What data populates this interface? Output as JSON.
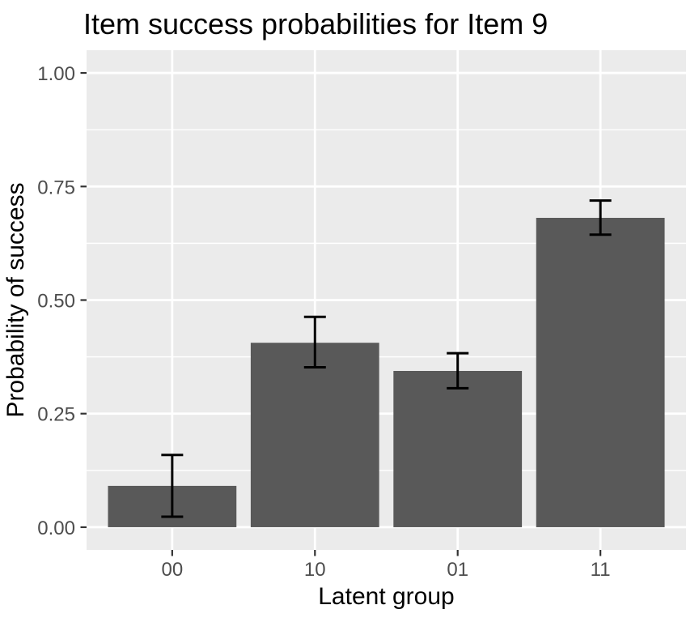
{
  "chart_data": {
    "type": "bar",
    "title": "Item success probabilities for Item 9",
    "xlabel": "Latent group",
    "ylabel": "Probability of success",
    "categories": [
      "00",
      "10",
      "01",
      "11"
    ],
    "values": [
      0.091,
      0.406,
      0.344,
      0.681
    ],
    "error_bars": {
      "low": [
        0.023,
        0.352,
        0.306,
        0.644
      ],
      "high": [
        0.159,
        0.463,
        0.383,
        0.719
      ]
    },
    "ylim": [
      0,
      1
    ],
    "yticks": [
      0,
      0.25,
      0.5,
      0.75,
      1
    ],
    "ytick_labels": [
      "0.00",
      "0.25",
      "0.50",
      "0.75",
      "1.00"
    ],
    "yticks_minor": [
      0.125,
      0.375,
      0.625,
      0.875
    ],
    "grid": true,
    "legend": false,
    "style": "ggplot2-theme-grey"
  },
  "colors": {
    "bar_fill": "#595959",
    "panel_bg": "#EBEBEB",
    "gridline": "#FFFFFF",
    "error_bar": "#000000",
    "tick_mark": "#333333",
    "tick_label": "#4D4D4D",
    "title_text": "#000000",
    "axis_title_text": "#000000",
    "background": "#FFFFFF"
  }
}
